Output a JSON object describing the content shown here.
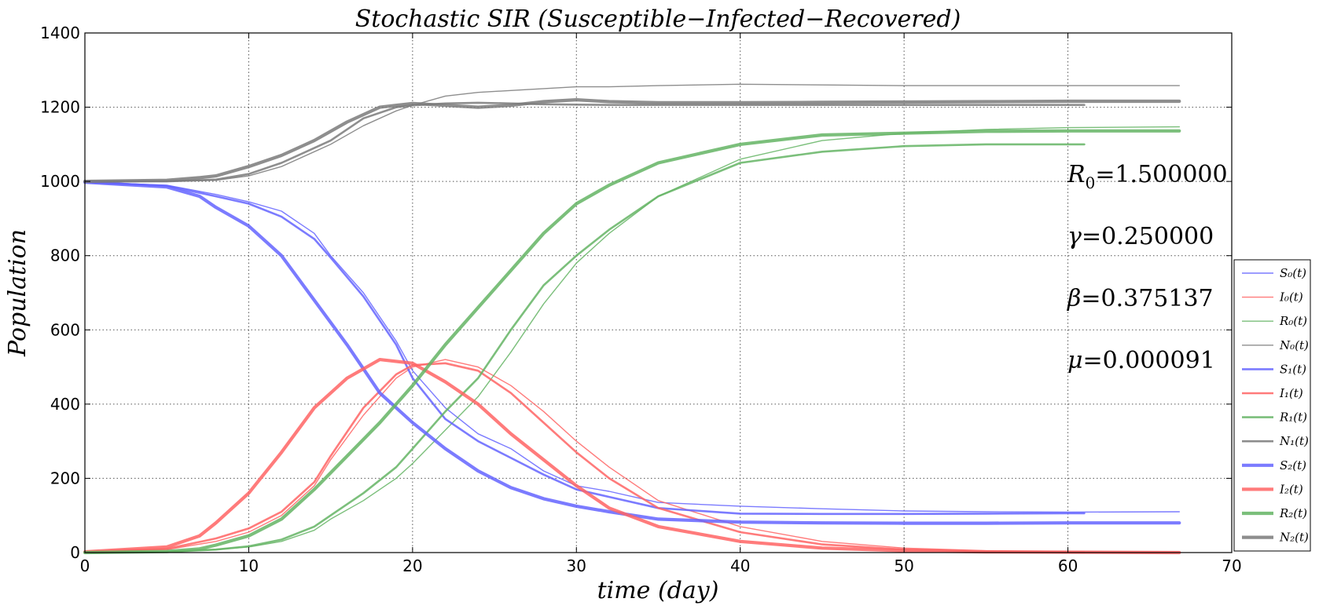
{
  "chart_data": {
    "type": "line",
    "title": "Stochastic SIR (Susceptible−Infected−Recovered)",
    "xlabel": "time (day)",
    "ylabel": "Population",
    "xlim": [
      0,
      70
    ],
    "ylim": [
      0,
      1400
    ],
    "xticks": [
      0,
      10,
      20,
      30,
      40,
      50,
      60,
      70
    ],
    "yticks": [
      0,
      200,
      400,
      600,
      800,
      1000,
      1200,
      1400
    ],
    "grid": true,
    "legend_position": "lower-right-outside",
    "annotations": [
      {
        "symbol": "R",
        "sub": "0",
        "value": "=1.500000"
      },
      {
        "symbol": "γ",
        "sub": "",
        "value": "=0.250000"
      },
      {
        "symbol": "β",
        "sub": "",
        "value": "=0.375137"
      },
      {
        "symbol": "μ",
        "sub": "",
        "value": "=0.000091"
      }
    ],
    "colors": {
      "S": "#6464ff",
      "I": "#ff6464",
      "R": "#64b464",
      "N": "#7a7a7a"
    },
    "series": [
      {
        "name": "S₀(t)",
        "var": "S",
        "run": 0,
        "x": [
          0,
          5,
          8,
          10,
          12,
          14,
          15,
          17,
          19,
          20,
          22,
          24,
          26,
          28,
          30,
          32,
          35,
          40,
          45,
          50,
          55,
          60,
          66.8
        ],
        "y": [
          998,
          990,
          965,
          945,
          920,
          860,
          800,
          700,
          570,
          490,
          390,
          320,
          280,
          220,
          180,
          165,
          135,
          125,
          118,
          112,
          110,
          109,
          110
        ]
      },
      {
        "name": "I₀(t)",
        "var": "I",
        "run": 0,
        "x": [
          0,
          5,
          8,
          10,
          12,
          14,
          15,
          17,
          19,
          20,
          22,
          24,
          26,
          28,
          30,
          32,
          35,
          40,
          45,
          50,
          55,
          60,
          66.8
        ],
        "y": [
          2,
          8,
          30,
          55,
          100,
          180,
          250,
          370,
          470,
          500,
          520,
          500,
          450,
          380,
          300,
          230,
          140,
          70,
          30,
          12,
          5,
          2,
          1
        ]
      },
      {
        "name": "R₀(t)",
        "var": "R",
        "run": 0,
        "x": [
          0,
          5,
          8,
          10,
          12,
          14,
          15,
          17,
          19,
          20,
          22,
          24,
          26,
          28,
          30,
          32,
          35,
          40,
          45,
          50,
          55,
          60,
          66.8
        ],
        "y": [
          0,
          2,
          8,
          15,
          30,
          60,
          90,
          140,
          200,
          240,
          330,
          420,
          540,
          670,
          780,
          860,
          960,
          1060,
          1110,
          1130,
          1140,
          1145,
          1147
        ]
      },
      {
        "name": "N₀(t)",
        "var": "N",
        "run": 0,
        "x": [
          0,
          5,
          8,
          10,
          12,
          14,
          15,
          17,
          19,
          20,
          22,
          24,
          26,
          28,
          30,
          32,
          35,
          40,
          45,
          50,
          55,
          60,
          66.8
        ],
        "y": [
          1000,
          1000,
          1003,
          1015,
          1040,
          1080,
          1100,
          1150,
          1190,
          1205,
          1230,
          1240,
          1245,
          1250,
          1255,
          1255,
          1258,
          1262,
          1260,
          1258,
          1258,
          1258,
          1258
        ]
      },
      {
        "name": "S₁(t)",
        "var": "S",
        "run": 1,
        "x": [
          0,
          5,
          8,
          10,
          12,
          14,
          15,
          17,
          19,
          20,
          22,
          24,
          26,
          28,
          30,
          32,
          35,
          40,
          45,
          50,
          55,
          60,
          61
        ],
        "y": [
          998,
          988,
          960,
          940,
          905,
          845,
          795,
          690,
          560,
          470,
          360,
          300,
          255,
          210,
          170,
          150,
          120,
          105,
          104,
          104,
          105,
          106,
          106
        ]
      },
      {
        "name": "I₁(t)",
        "var": "I",
        "run": 1,
        "x": [
          0,
          5,
          8,
          10,
          12,
          14,
          15,
          17,
          19,
          20,
          22,
          24,
          26,
          28,
          30,
          32,
          35,
          40,
          45,
          50,
          55,
          60,
          61
        ],
        "y": [
          2,
          10,
          38,
          65,
          110,
          190,
          260,
          390,
          480,
          505,
          510,
          490,
          430,
          350,
          270,
          200,
          120,
          55,
          22,
          8,
          3,
          1,
          1
        ]
      },
      {
        "name": "R₁(t)",
        "var": "R",
        "run": 1,
        "x": [
          0,
          5,
          8,
          10,
          12,
          14,
          15,
          17,
          19,
          20,
          22,
          24,
          26,
          28,
          30,
          32,
          35,
          40,
          45,
          50,
          55,
          60,
          61
        ],
        "y": [
          0,
          2,
          8,
          17,
          35,
          70,
          100,
          160,
          230,
          280,
          380,
          470,
          600,
          720,
          800,
          870,
          960,
          1050,
          1080,
          1095,
          1100,
          1100,
          1100
        ]
      },
      {
        "name": "N₁(t)",
        "var": "N",
        "run": 1,
        "x": [
          0,
          5,
          8,
          10,
          12,
          14,
          15,
          17,
          19,
          20,
          22,
          24,
          26,
          28,
          30,
          32,
          35,
          40,
          45,
          50,
          55,
          60,
          61
        ],
        "y": [
          1000,
          1000,
          1005,
          1020,
          1050,
          1090,
          1110,
          1170,
          1200,
          1205,
          1210,
          1212,
          1210,
          1208,
          1207,
          1206,
          1206,
          1206,
          1206,
          1206,
          1206,
          1206,
          1206
        ]
      },
      {
        "name": "S₂(t)",
        "var": "S",
        "run": 2,
        "x": [
          0,
          5,
          7,
          8,
          10,
          12,
          14,
          16,
          18,
          20,
          22,
          24,
          26,
          28,
          30,
          32,
          35,
          40,
          45,
          50,
          55,
          60,
          66.8
        ],
        "y": [
          998,
          985,
          960,
          930,
          880,
          800,
          680,
          560,
          430,
          350,
          280,
          220,
          175,
          145,
          125,
          110,
          90,
          82,
          80,
          79,
          79,
          80,
          80
        ]
      },
      {
        "name": "I₂(t)",
        "var": "I",
        "run": 2,
        "x": [
          0,
          5,
          7,
          8,
          10,
          12,
          14,
          16,
          18,
          20,
          22,
          24,
          26,
          28,
          30,
          32,
          35,
          40,
          45,
          50,
          55,
          60,
          66.8
        ],
        "y": [
          2,
          15,
          45,
          80,
          160,
          270,
          390,
          470,
          520,
          510,
          460,
          400,
          320,
          250,
          180,
          120,
          70,
          30,
          12,
          5,
          2,
          1,
          0
        ]
      },
      {
        "name": "R₂(t)",
        "var": "R",
        "run": 2,
        "x": [
          0,
          5,
          7,
          8,
          10,
          12,
          14,
          16,
          18,
          20,
          22,
          24,
          26,
          28,
          30,
          32,
          35,
          40,
          45,
          50,
          55,
          60,
          66.8
        ],
        "y": [
          0,
          3,
          10,
          20,
          45,
          90,
          170,
          260,
          350,
          450,
          560,
          660,
          760,
          860,
          940,
          990,
          1050,
          1100,
          1125,
          1130,
          1135,
          1136,
          1136
        ]
      },
      {
        "name": "N₂(t)",
        "var": "N",
        "run": 2,
        "x": [
          0,
          5,
          7,
          8,
          10,
          12,
          14,
          16,
          18,
          20,
          22,
          24,
          26,
          28,
          30,
          32,
          35,
          40,
          45,
          50,
          55,
          60,
          66.8
        ],
        "y": [
          1000,
          1003,
          1010,
          1015,
          1040,
          1070,
          1110,
          1160,
          1200,
          1210,
          1205,
          1200,
          1205,
          1215,
          1220,
          1215,
          1212,
          1212,
          1213,
          1214,
          1215,
          1216,
          1216
        ]
      }
    ]
  }
}
